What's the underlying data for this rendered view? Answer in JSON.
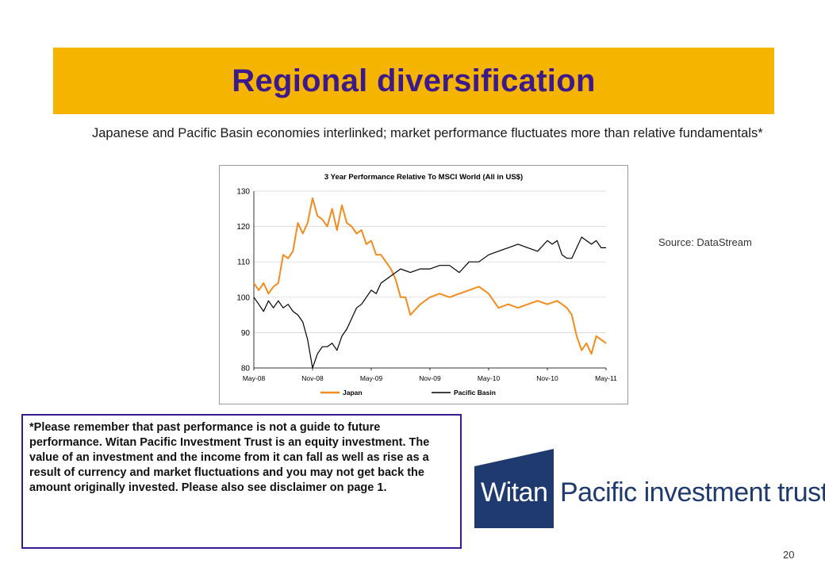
{
  "slide": {
    "title": "Regional diversification",
    "subtitle": "Japanese and Pacific Basin economies interlinked; market performance fluctuates more than relative fundamentals*",
    "source": "Source: DataStream",
    "disclaimer": "*Please remember that past performance is not a guide to future performance. Witan Pacific Investment Trust is an equity investment. The value of an investment and the income from it can fall as well as rise as a result of currency and market fluctuations and you may not get back the amount originally invested. Please also see disclaimer on page 1.",
    "page_number": "20"
  },
  "logo": {
    "brand": "Witan",
    "rest": "Pacific investment trust"
  },
  "colors": {
    "title_bar": "#F4B400",
    "title_text": "#3D1A8C",
    "japan": "#F28C1E",
    "pacific_basin": "#000000",
    "logo_blue": "#1F3A6E"
  },
  "chart_data": {
    "type": "line",
    "title": "3 Year Performance Relative To MSCI World (All in US$)",
    "x_ticks": [
      "May-08",
      "Nov-08",
      "May-09",
      "Nov-09",
      "May-10",
      "Nov-10",
      "May-11"
    ],
    "y_ticks": [
      80,
      90,
      100,
      110,
      120,
      130
    ],
    "ylim": [
      80,
      130
    ],
    "xlim": [
      0,
      36
    ],
    "legend_position": "bottom",
    "series": [
      {
        "name": "Japan",
        "color": "#F28C1E",
        "x": [
          0,
          0.5,
          1,
          1.5,
          2,
          2.5,
          3,
          3.5,
          4,
          4.5,
          5,
          5.5,
          6,
          6.5,
          7,
          7.5,
          8,
          8.5,
          9,
          9.5,
          10,
          10.5,
          11,
          11.5,
          12,
          12.5,
          13,
          13.5,
          14,
          14.5,
          15,
          15.5,
          16,
          17,
          18,
          19,
          20,
          21,
          22,
          23,
          24,
          25,
          26,
          27,
          28,
          29,
          30,
          31,
          32,
          32.5,
          33,
          33.5,
          34,
          34.5,
          35,
          35.5,
          36
        ],
        "y": [
          104,
          102,
          104,
          101,
          103,
          104,
          112,
          111,
          113,
          121,
          118,
          121,
          128,
          123,
          122,
          120,
          125,
          119,
          126,
          121,
          120,
          118,
          119,
          115,
          116,
          112,
          112,
          110,
          108,
          105,
          100,
          100,
          95,
          98,
          100,
          101,
          100,
          101,
          102,
          103,
          101,
          97,
          98,
          97,
          98,
          99,
          98,
          99,
          97,
          95,
          89,
          85,
          87,
          84,
          89,
          88,
          87
        ]
      },
      {
        "name": "Pacific Basin",
        "color": "#000000",
        "x": [
          0,
          0.5,
          1,
          1.5,
          2,
          2.5,
          3,
          3.5,
          4,
          4.5,
          5,
          5.5,
          6,
          6.5,
          7,
          7.5,
          8,
          8.5,
          9,
          9.5,
          10,
          10.5,
          11,
          11.5,
          12,
          12.5,
          13,
          14,
          15,
          16,
          17,
          18,
          19,
          20,
          21,
          22,
          23,
          24,
          25,
          26,
          27,
          28,
          29,
          30,
          30.5,
          31,
          31.5,
          32,
          32.5,
          33,
          33.5,
          34,
          34.5,
          35,
          35.5,
          36
        ],
        "y": [
          100,
          98,
          96,
          99,
          97,
          99,
          97,
          98,
          96,
          95,
          93,
          88,
          80,
          84,
          86,
          86,
          87,
          85,
          89,
          91,
          94,
          97,
          98,
          100,
          102,
          101,
          104,
          106,
          108,
          107,
          108,
          108,
          109,
          109,
          107,
          110,
          110,
          112,
          113,
          114,
          115,
          114,
          113,
          116,
          115,
          116,
          112,
          111,
          111,
          114,
          117,
          116,
          115,
          116,
          114,
          114
        ]
      }
    ]
  }
}
